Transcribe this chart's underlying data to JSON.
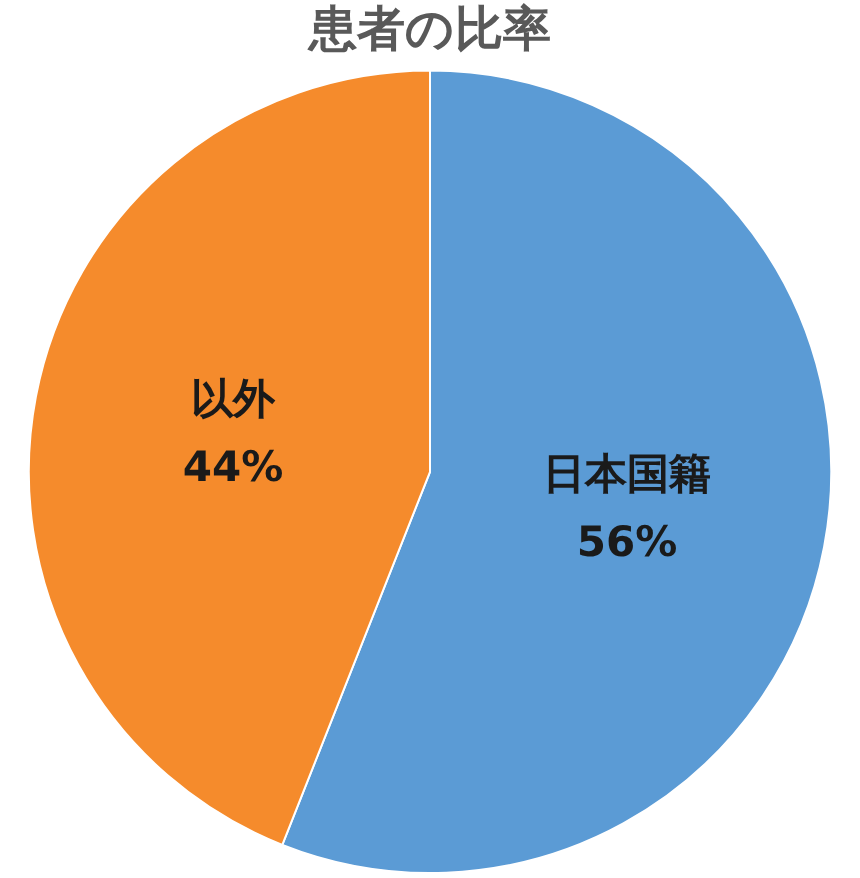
{
  "chart_data": {
    "type": "pie",
    "title": "患者の比率",
    "categories": [
      "日本国籍",
      "以外"
    ],
    "values": [
      56,
      44
    ],
    "value_labels": [
      "56%",
      "44%"
    ],
    "colors": [
      "#5b9bd5",
      "#f58b2c"
    ],
    "legend": false
  }
}
